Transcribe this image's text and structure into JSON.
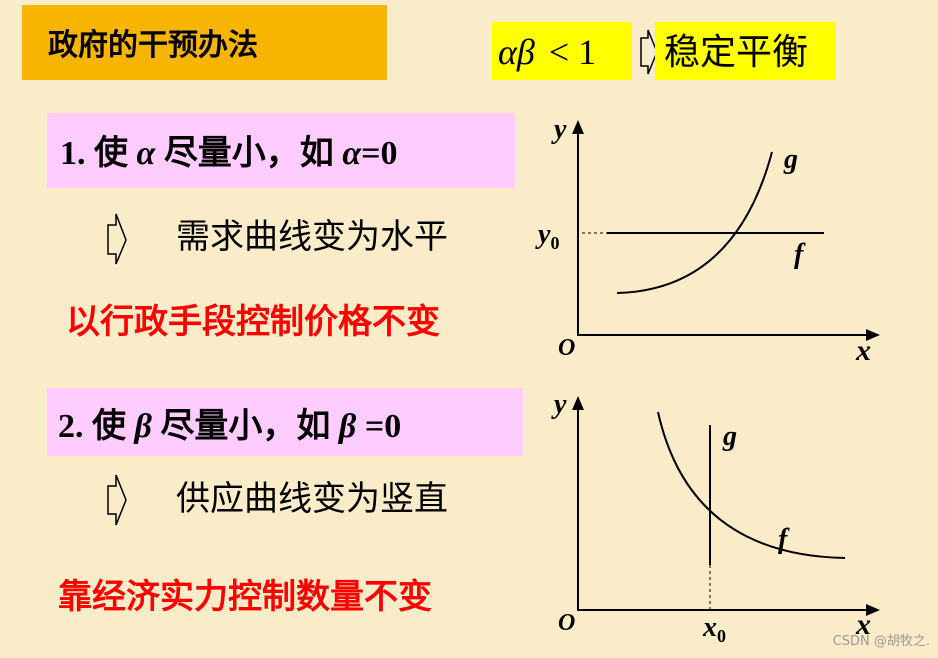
{
  "header": {
    "title": "政府的干预办法",
    "condition": {
      "formula": "αβ",
      "relation": "< 1",
      "result": "稳定平衡"
    }
  },
  "items": [
    {
      "statement": [
        "1. 使 ",
        "α",
        " 尽量小，如 ",
        "α",
        "=0"
      ],
      "effect": "需求曲线变为水平",
      "policy": "以行政手段控制价格不变",
      "diagram": {
        "y_axis": "y",
        "x_axis": "x",
        "origin": "O",
        "curve_g": "g",
        "curve_f": "f",
        "level": {
          "base": "y",
          "sub": "0"
        }
      }
    },
    {
      "statement": [
        "2. 使 ",
        "β",
        " 尽量小，如 ",
        "β",
        " =0"
      ],
      "effect": "供应曲线变为竖直",
      "policy": "靠经济实力控制数量不变",
      "diagram": {
        "y_axis": "y",
        "x_axis": "x",
        "origin": "O",
        "curve_g": "g",
        "curve_f": "f",
        "level": {
          "base": "x",
          "sub": "0"
        }
      }
    }
  ],
  "watermark": "CSDN @胡牧之."
}
